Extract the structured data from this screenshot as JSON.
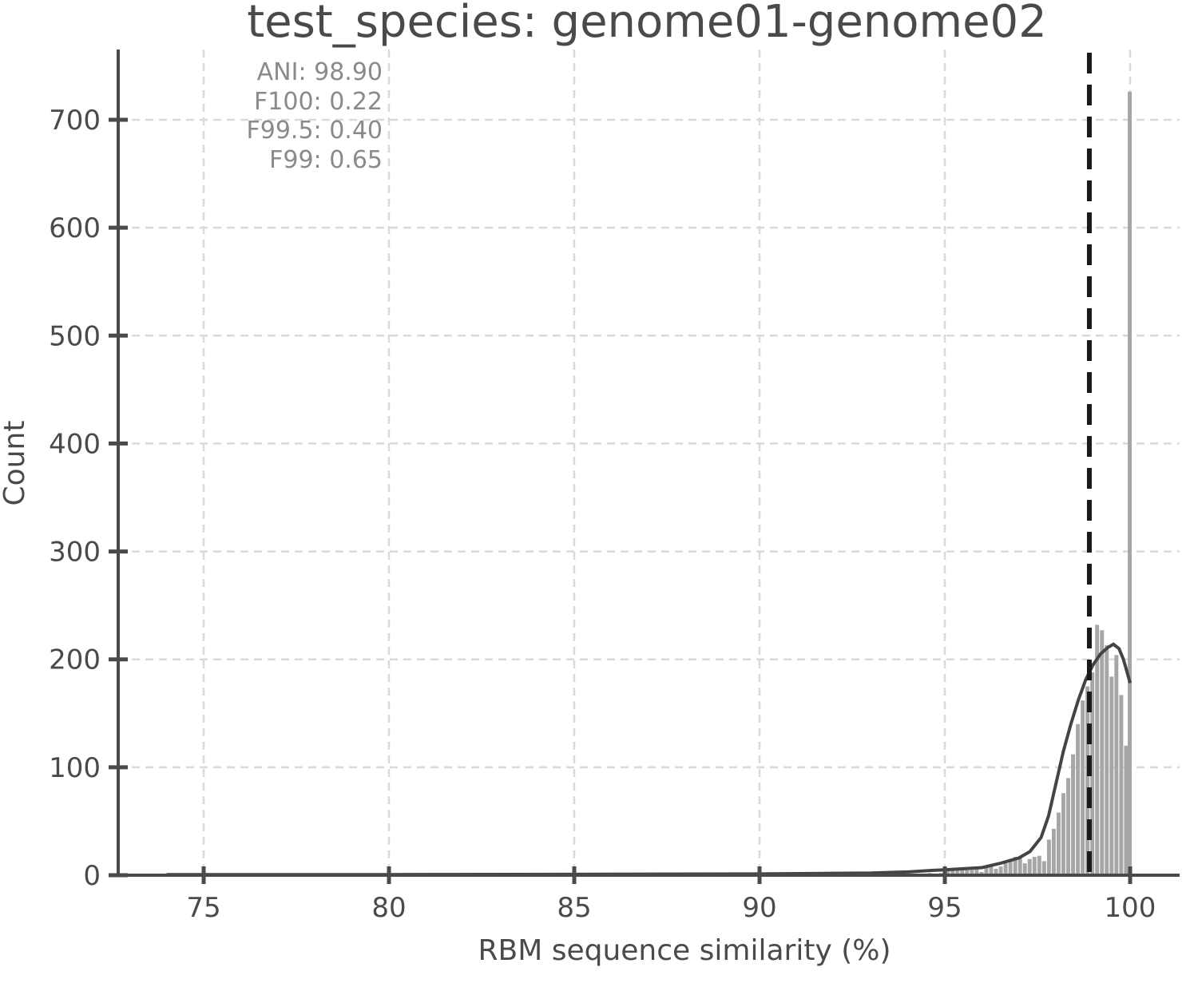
{
  "chart_data": {
    "type": "bar",
    "title": "test_species: genome01-genome02",
    "xlabel": "RBM sequence similarity (%)",
    "ylabel": "Count",
    "xlim": [
      72.7,
      101.3
    ],
    "ylim": [
      0,
      760
    ],
    "xticks": [
      75,
      80,
      85,
      90,
      95,
      100
    ],
    "yticks": [
      0,
      100,
      200,
      300,
      400,
      500,
      600,
      700
    ],
    "grid": true,
    "annotations": [
      "ANI: 98.90",
      "F100: 0.22",
      "F99.5: 0.40",
      "F99: 0.65"
    ],
    "ani_line_x": 98.9,
    "bin_width": 0.13,
    "bins": [
      [
        74.0,
        1
      ],
      [
        77.6,
        1
      ],
      [
        82.9,
        1
      ],
      [
        86.1,
        1
      ],
      [
        88.5,
        1
      ],
      [
        90.2,
        1
      ],
      [
        91.5,
        1
      ],
      [
        92.6,
        1
      ],
      [
        93.4,
        1
      ],
      [
        94.1,
        1
      ],
      [
        94.6,
        2
      ],
      [
        94.9,
        2
      ],
      [
        95.08,
        4
      ],
      [
        95.21,
        6
      ],
      [
        95.34,
        7
      ],
      [
        95.47,
        5
      ],
      [
        95.6,
        5
      ],
      [
        95.73,
        5
      ],
      [
        95.86,
        6
      ],
      [
        95.99,
        3
      ],
      [
        96.12,
        7
      ],
      [
        96.25,
        8
      ],
      [
        96.38,
        6
      ],
      [
        96.51,
        8
      ],
      [
        96.64,
        11
      ],
      [
        96.77,
        14
      ],
      [
        96.9,
        17
      ],
      [
        97.03,
        16
      ],
      [
        97.16,
        11
      ],
      [
        97.29,
        15
      ],
      [
        97.42,
        17
      ],
      [
        97.55,
        18
      ],
      [
        97.68,
        13
      ],
      [
        97.81,
        33
      ],
      [
        97.94,
        43
      ],
      [
        98.07,
        58
      ],
      [
        98.2,
        76
      ],
      [
        98.33,
        90
      ],
      [
        98.46,
        112
      ],
      [
        98.59,
        140
      ],
      [
        98.72,
        162
      ],
      [
        98.85,
        175
      ],
      [
        98.98,
        188
      ],
      [
        99.11,
        232
      ],
      [
        99.24,
        227
      ],
      [
        99.37,
        213
      ],
      [
        99.5,
        184
      ],
      [
        99.63,
        204
      ],
      [
        99.76,
        167
      ],
      [
        99.89,
        120
      ],
      [
        99.99,
        726
      ]
    ],
    "kde": [
      [
        74,
        0.5
      ],
      [
        80,
        0.6
      ],
      [
        85,
        0.8
      ],
      [
        90,
        1.2
      ],
      [
        93,
        2
      ],
      [
        94,
        3
      ],
      [
        94.7,
        4.5
      ],
      [
        95,
        5
      ],
      [
        95.5,
        6
      ],
      [
        96,
        7
      ],
      [
        96.5,
        11
      ],
      [
        97,
        16
      ],
      [
        97.3,
        22
      ],
      [
        97.6,
        35
      ],
      [
        97.8,
        55
      ],
      [
        98.0,
        85
      ],
      [
        98.2,
        115
      ],
      [
        98.4,
        140
      ],
      [
        98.6,
        162
      ],
      [
        98.8,
        181
      ],
      [
        99.0,
        195
      ],
      [
        99.2,
        205
      ],
      [
        99.4,
        211
      ],
      [
        99.55,
        214
      ],
      [
        99.7,
        210
      ],
      [
        99.82,
        200
      ],
      [
        99.92,
        188
      ],
      [
        100.0,
        178
      ]
    ]
  }
}
